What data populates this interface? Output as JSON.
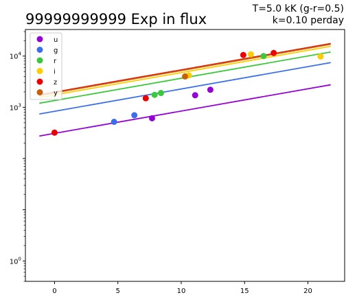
{
  "chart_data": {
    "type": "scatter",
    "title": "99999999999 Exp in flux",
    "subtitle_lines": [
      "T=5.0 kK (g-r=0.5)",
      "k=0.10 perday"
    ],
    "xlabel": "",
    "ylabel": "",
    "xlim": [
      -2.3,
      22.9
    ],
    "ylim": [
      0.4,
      33000
    ],
    "yscale": "log",
    "x_ticks": [
      0,
      5,
      10,
      15,
      20
    ],
    "y_ticks": [
      1,
      1000,
      10000
    ],
    "y_tick_labels": [
      "10^0",
      "10^3",
      "10^4"
    ],
    "grid": false,
    "legend_position": "upper-left",
    "series": [
      {
        "name": "u",
        "color": "#9400D3",
        "line": {
          "x": [
            -1.2,
            21.8
          ],
          "y": [
            275,
            2750
          ]
        },
        "points": [
          {
            "x": 7.7,
            "y": 610
          },
          {
            "x": 11.1,
            "y": 1720
          },
          {
            "x": 12.3,
            "y": 2200
          }
        ]
      },
      {
        "name": "g",
        "color": "#3A6FE9",
        "line": {
          "x": [
            -1.2,
            21.8
          ],
          "y": [
            740,
            7450
          ]
        },
        "points": [
          {
            "x": 4.7,
            "y": 520
          },
          {
            "x": 6.3,
            "y": 700
          }
        ]
      },
      {
        "name": "r",
        "color": "#3CC83C",
        "line": {
          "x": [
            -1.2,
            21.8
          ],
          "y": [
            1200,
            12000
          ]
        },
        "points": [
          {
            "x": 7.9,
            "y": 1750
          },
          {
            "x": 8.4,
            "y": 1900
          },
          {
            "x": 16.5,
            "y": 10000
          }
        ]
      },
      {
        "name": "i",
        "color": "#FFCC00",
        "line": {
          "x": [
            -1.2,
            21.8
          ],
          "y": [
            1550,
            15500
          ]
        },
        "points": [
          {
            "x": 10.6,
            "y": 4200
          },
          {
            "x": 15.5,
            "y": 10800
          },
          {
            "x": 21.0,
            "y": 9800
          }
        ]
      },
      {
        "name": "z",
        "color": "#EE0000",
        "line": {
          "x": [
            -1.2,
            21.8
          ],
          "y": [
            1750,
            17500
          ]
        },
        "points": [
          {
            "x": 0.0,
            "y": 320
          },
          {
            "x": 7.2,
            "y": 1500
          },
          {
            "x": 14.9,
            "y": 10500
          },
          {
            "x": 17.3,
            "y": 11500
          }
        ]
      },
      {
        "name": "y",
        "color": "#C8600A",
        "line": {
          "x": [
            -1.2,
            21.8
          ],
          "y": [
            1700,
            17000
          ]
        },
        "points": [
          {
            "x": 10.3,
            "y": 4000
          }
        ]
      }
    ]
  }
}
